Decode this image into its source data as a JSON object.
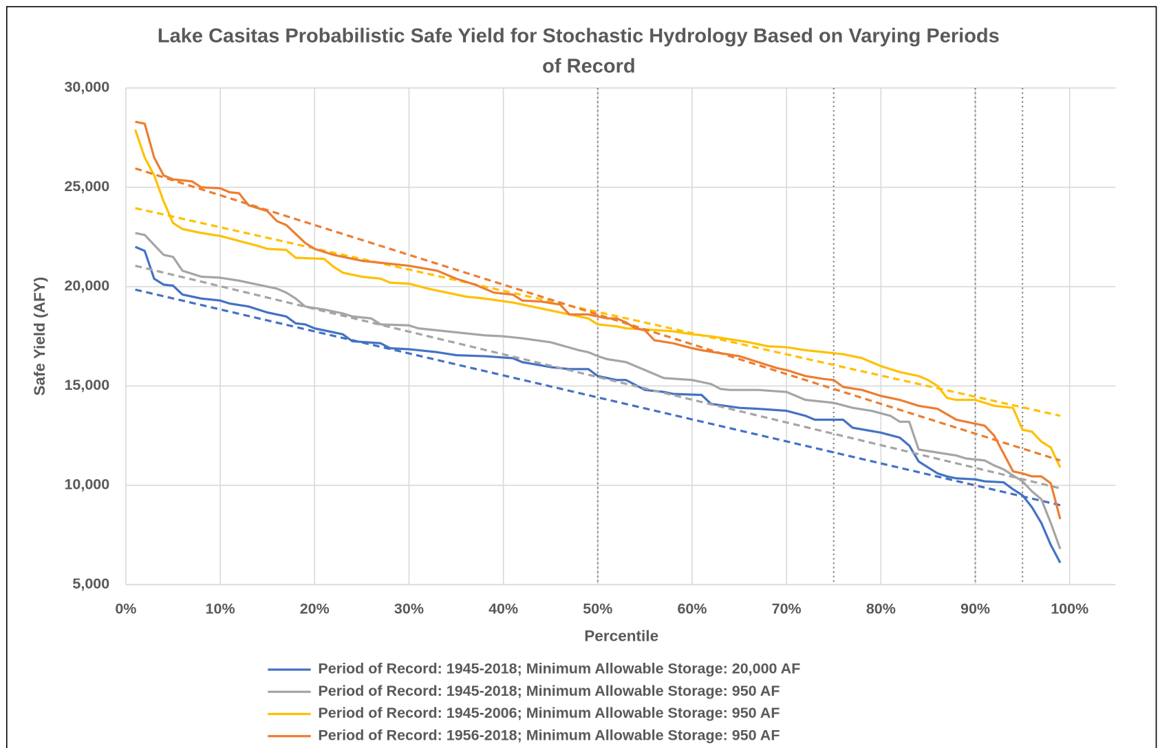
{
  "chart_data": {
    "type": "line",
    "title": [
      "Lake Casitas Probabilistic Safe Yield for Stochastic Hydrology Based on Varying Periods",
      "of Record"
    ],
    "x_label": "Percentile",
    "y_label": "Safe Yield (AFY)",
    "xlim": [
      0,
      100
    ],
    "xticks": [
      {
        "value": 0,
        "label": "0%"
      },
      {
        "value": 10,
        "label": "10%"
      },
      {
        "value": 20,
        "label": "20%"
      },
      {
        "value": 30,
        "label": "30%"
      },
      {
        "value": 40,
        "label": "40%"
      },
      {
        "value": 50,
        "label": "50%"
      },
      {
        "value": 60,
        "label": "60%"
      },
      {
        "value": 70,
        "label": "70%"
      },
      {
        "value": 80,
        "label": "80%"
      },
      {
        "value": 90,
        "label": "90%"
      },
      {
        "value": 100,
        "label": "100%"
      }
    ],
    "ylim": [
      5000,
      30000
    ],
    "yticks": [
      {
        "value": 5000,
        "label": "5,000"
      },
      {
        "value": 10000,
        "label": "10,000"
      },
      {
        "value": 15000,
        "label": "15,000"
      },
      {
        "value": 20000,
        "label": "20,000"
      },
      {
        "value": 25000,
        "label": "25,000"
      },
      {
        "value": 30000,
        "label": "30,000"
      }
    ],
    "grid": true,
    "legend": "bottom",
    "reference_lines": [
      50,
      75,
      90,
      95
    ],
    "series": [
      {
        "name": "Period of Record: 1945-2018; Minimum Allowable Storage: 20,000 AF",
        "color": "#4472c4",
        "x": [
          1,
          2,
          3,
          4,
          5,
          6,
          8,
          10,
          11,
          13,
          15,
          17,
          18,
          19,
          20,
          22,
          23,
          24,
          27,
          28,
          30,
          33,
          35,
          38,
          41,
          42,
          45,
          47,
          49,
          50,
          52,
          53,
          55,
          57,
          58,
          61,
          62,
          65,
          67,
          70,
          72,
          73,
          76,
          77,
          80,
          82,
          83,
          84,
          86,
          87,
          88,
          90,
          91,
          93,
          94,
          95,
          96,
          97,
          98,
          99
        ],
        "values": [
          22000,
          21800,
          20400,
          20100,
          20050,
          19600,
          19400,
          19300,
          19150,
          19000,
          18700,
          18500,
          18150,
          18100,
          17900,
          17700,
          17600,
          17250,
          17150,
          16900,
          16850,
          16700,
          16550,
          16500,
          16400,
          16200,
          15950,
          15850,
          15850,
          15500,
          15300,
          15300,
          14800,
          14700,
          14600,
          14550,
          14100,
          13900,
          13850,
          13750,
          13500,
          13300,
          13300,
          12900,
          12650,
          12400,
          12000,
          11200,
          10600,
          10450,
          10350,
          10300,
          10200,
          10150,
          9800,
          9500,
          8900,
          8100,
          7000,
          6100
        ],
        "trend_x": [
          1,
          99
        ],
        "trend": [
          19850,
          9000
        ]
      },
      {
        "name": "Period of Record: 1945-2018; Minimum Allowable Storage: 950 AF",
        "color": "#a5a5a5",
        "x": [
          1,
          2,
          3,
          4,
          5,
          6,
          8,
          10,
          12,
          14,
          16,
          17,
          18,
          19,
          21,
          23,
          24,
          26,
          27,
          30,
          31,
          33,
          35,
          38,
          40,
          42,
          45,
          48,
          49,
          50,
          51,
          53,
          55,
          56,
          57,
          60,
          62,
          63,
          64,
          67,
          70,
          71,
          72,
          74,
          75,
          77,
          79,
          81,
          82,
          83,
          84,
          86,
          88,
          89,
          91,
          92,
          93,
          94,
          95,
          96,
          97,
          98,
          99
        ],
        "values": [
          22700,
          22600,
          22100,
          21600,
          21500,
          20800,
          20500,
          20450,
          20300,
          20100,
          19900,
          19700,
          19400,
          19000,
          18850,
          18650,
          18500,
          18400,
          18100,
          18050,
          17900,
          17800,
          17700,
          17550,
          17500,
          17400,
          17200,
          16800,
          16700,
          16500,
          16350,
          16200,
          15800,
          15600,
          15400,
          15300,
          15100,
          14850,
          14800,
          14800,
          14700,
          14500,
          14300,
          14200,
          14150,
          13900,
          13750,
          13500,
          13200,
          13200,
          11800,
          11650,
          11500,
          11350,
          11250,
          11000,
          10800,
          10500,
          10200,
          9700,
          9300,
          8100,
          6800
        ],
        "trend_x": [
          1,
          99
        ],
        "trend": [
          21050,
          9850
        ]
      },
      {
        "name": "Period of Record: 1945-2006; Minimum Allowable Storage: 950 AF",
        "color": "#ffc000",
        "x": [
          1,
          2,
          3,
          4,
          5,
          6,
          8,
          10,
          12,
          14,
          15,
          17,
          18,
          21,
          22,
          23,
          25,
          27,
          28,
          30,
          32,
          34,
          36,
          38,
          41,
          43,
          45,
          47,
          49,
          50,
          52,
          53,
          55,
          58,
          60,
          62,
          64,
          66,
          68,
          70,
          72,
          74,
          76,
          78,
          80,
          82,
          84,
          85,
          86,
          87,
          88,
          90,
          92,
          94,
          95,
          96,
          97,
          98,
          99
        ],
        "values": [
          27900,
          26500,
          25600,
          24300,
          23200,
          22900,
          22700,
          22550,
          22300,
          22050,
          21900,
          21850,
          21450,
          21400,
          21000,
          20700,
          20500,
          20400,
          20200,
          20150,
          19900,
          19700,
          19500,
          19400,
          19200,
          19000,
          18800,
          18600,
          18400,
          18100,
          18000,
          17900,
          17850,
          17750,
          17600,
          17500,
          17350,
          17200,
          17000,
          16950,
          16800,
          16700,
          16600,
          16400,
          16000,
          15700,
          15500,
          15300,
          15000,
          14400,
          14300,
          14300,
          14000,
          13900,
          12800,
          12700,
          12200,
          11900,
          10900
        ],
        "trend_x": [
          1,
          99
        ],
        "trend": [
          23950,
          13500
        ]
      },
      {
        "name": "Period of Record: 1956-2018; Minimum Allowable Storage: 950 AF",
        "color": "#ed7d31",
        "x": [
          1,
          2,
          3,
          4,
          5,
          7,
          8,
          10,
          11,
          12,
          13,
          15,
          16,
          17,
          19,
          20,
          22,
          25,
          27,
          30,
          33,
          35,
          37,
          39,
          41,
          42,
          44,
          46,
          47,
          49,
          51,
          52,
          53,
          54,
          55,
          56,
          58,
          60,
          61,
          63,
          65,
          67,
          69,
          70,
          72,
          74,
          75,
          76,
          78,
          80,
          82,
          84,
          86,
          88,
          90,
          91,
          92,
          93,
          94,
          95,
          96,
          97,
          98,
          99
        ],
        "values": [
          28300,
          28200,
          26500,
          25600,
          25400,
          25300,
          25000,
          24950,
          24750,
          24700,
          24100,
          23800,
          23300,
          23100,
          22200,
          21900,
          21600,
          21300,
          21200,
          21050,
          20800,
          20400,
          20100,
          19700,
          19600,
          19300,
          19250,
          19100,
          18600,
          18600,
          18400,
          18400,
          18200,
          17900,
          17800,
          17300,
          17150,
          16900,
          16800,
          16650,
          16500,
          16200,
          15900,
          15800,
          15500,
          15350,
          15300,
          14950,
          14800,
          14500,
          14300,
          14000,
          13850,
          13300,
          13100,
          13000,
          12500,
          11600,
          10700,
          10600,
          10450,
          10450,
          10100,
          8300
        ],
        "trend_x": [
          1,
          99
        ],
        "trend": [
          25950,
          11250
        ]
      }
    ]
  }
}
